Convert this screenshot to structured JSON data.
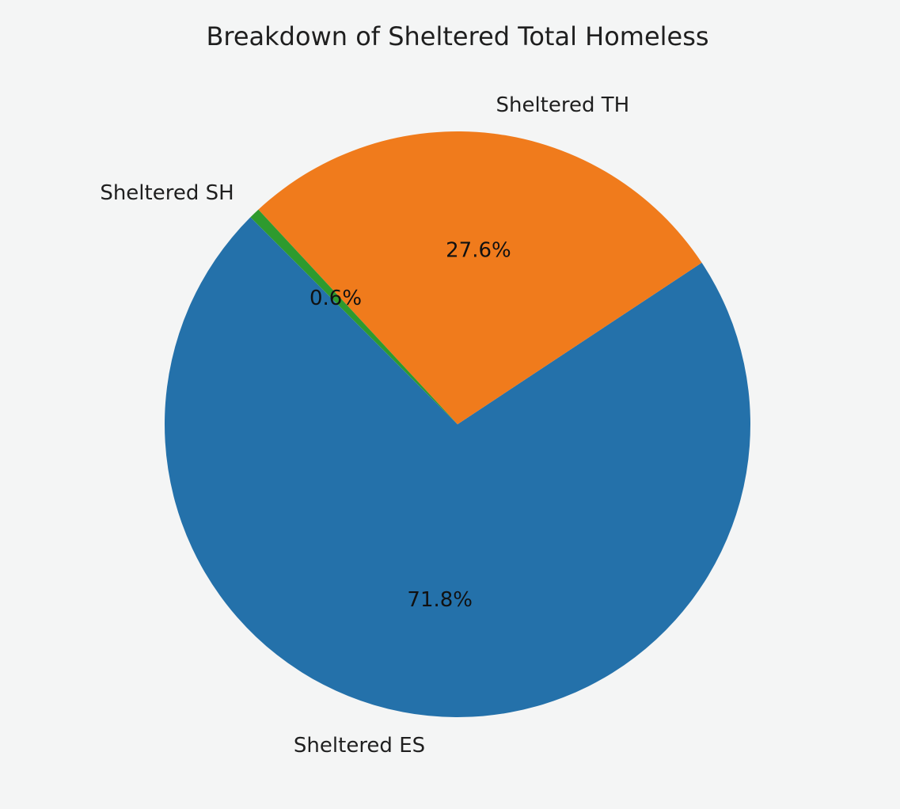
{
  "chart_data": {
    "type": "pie",
    "title": "Breakdown of Sheltered Total Homeless",
    "start_angle_deg": 135,
    "direction": "counterclockwise",
    "slices": [
      {
        "label": "Sheltered ES",
        "percent": 71.8,
        "pct_label": "71.8%",
        "color": "#2471aa"
      },
      {
        "label": "Sheltered TH",
        "percent": 27.6,
        "pct_label": "27.6%",
        "color": "#f07b1c"
      },
      {
        "label": "Sheltered SH",
        "percent": 0.6,
        "pct_label": "0.6%",
        "color": "#2e9a2e"
      }
    ]
  }
}
